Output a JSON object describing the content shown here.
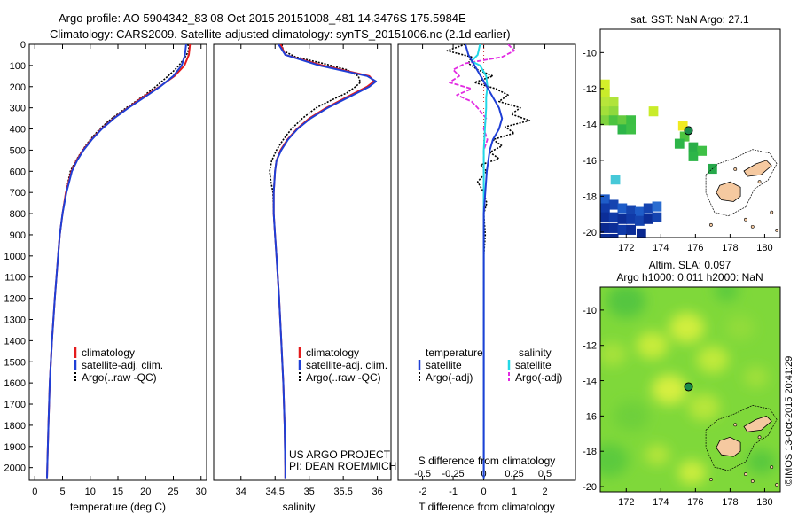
{
  "header": {
    "line1": "Argo profile: AO 5904342_83 08-Oct-2015 20151008_481 14.3476S 175.5984E",
    "line2": "Climatology: CARS2009. Satellite-adjusted climatology: synTS_20151006.nc (2.1d earlier)"
  },
  "credits": {
    "project": "US ARGO PROJECT",
    "pi": "PI: DEAN ROEMMICH",
    "imos_stamp": "©IMOS 13-Oct-2015 20:41:29"
  },
  "colors": {
    "climatology": "#e41a1c",
    "satellite_adj": "#1f3fd6",
    "argo": "#000000",
    "s_satellite": "#22d8e6",
    "s_argo": "#e22be2",
    "land": "#f5c9a0",
    "float_marker": "#1a8a4a"
  },
  "chart_data": [
    {
      "type": "line",
      "panel": "temperature",
      "xlabel": "temperature (deg C)",
      "xlim": [
        -1,
        31
      ],
      "xticks": [
        0,
        5,
        10,
        15,
        20,
        25,
        30
      ],
      "ylim": [
        0,
        2060
      ],
      "yticks": [
        0,
        100,
        200,
        300,
        400,
        500,
        600,
        700,
        800,
        900,
        1000,
        1100,
        1200,
        1300,
        1400,
        1500,
        1600,
        1700,
        1800,
        1900,
        2000
      ],
      "legend": [
        "climatology",
        "satellite-adj. clim.",
        "Argo(..raw -QC)"
      ],
      "legend_position": "bottom-center",
      "series": [
        {
          "name": "climatology",
          "depth": [
            0,
            50,
            100,
            150,
            200,
            250,
            300,
            350,
            400,
            450,
            500,
            550,
            600,
            700,
            800,
            900,
            1000,
            1200,
            1400,
            1600,
            1800,
            2000,
            2050
          ],
          "values": [
            28.0,
            27.8,
            27.0,
            25.2,
            22.5,
            19.5,
            16.8,
            14.2,
            12.0,
            10.2,
            8.7,
            7.5,
            6.6,
            5.6,
            5.0,
            4.5,
            4.2,
            3.6,
            3.1,
            2.7,
            2.45,
            2.25,
            2.2
          ]
        },
        {
          "name": "satellite-adj. clim.",
          "depth": [
            0,
            50,
            100,
            150,
            200,
            250,
            300,
            350,
            400,
            450,
            500,
            550,
            600,
            700,
            800,
            900,
            1000,
            1200,
            1400,
            1600,
            1800,
            2000,
            2050
          ],
          "values": [
            27.3,
            27.1,
            26.5,
            25.0,
            22.6,
            19.8,
            16.9,
            14.3,
            12.1,
            10.3,
            8.8,
            7.6,
            6.7,
            5.7,
            5.0,
            4.5,
            4.2,
            3.6,
            3.1,
            2.7,
            2.45,
            2.25,
            2.2
          ]
        },
        {
          "name": "Argo(..raw -QC)",
          "depth": [
            0,
            20,
            50,
            80,
            100,
            130,
            160,
            200,
            250,
            300,
            350,
            400,
            450,
            500,
            550,
            600,
            650,
            700,
            800,
            900,
            1000,
            1200,
            1400,
            1600,
            1800,
            2000
          ],
          "values": [
            27.6,
            27.8,
            27.4,
            26.6,
            26.0,
            24.9,
            23.6,
            21.8,
            19.3,
            16.5,
            13.9,
            11.7,
            10.0,
            8.6,
            7.4,
            6.4,
            6.0,
            5.6,
            5.0,
            4.5,
            4.2,
            3.6,
            3.1,
            2.7,
            2.45,
            2.25
          ]
        }
      ]
    },
    {
      "type": "line",
      "panel": "salinity",
      "xlabel": "salinity",
      "xlim": [
        33.6,
        36.2
      ],
      "xticks": [
        34,
        34.5,
        35,
        35.5,
        36
      ],
      "ylim": [
        0,
        2060
      ],
      "legend": [
        "climatology",
        "satellite-adj. clim.",
        "Argo(..raw -QC)"
      ],
      "legend_position": "bottom-center",
      "series": [
        {
          "name": "climatology",
          "depth": [
            0,
            50,
            100,
            150,
            175,
            200,
            250,
            300,
            350,
            400,
            450,
            500,
            550,
            600,
            700,
            800,
            900,
            1000,
            1200,
            1400,
            1600,
            1800,
            2000,
            2050
          ],
          "values": [
            34.58,
            34.65,
            35.2,
            35.88,
            35.95,
            35.85,
            35.55,
            35.25,
            35.0,
            34.82,
            34.68,
            34.58,
            34.52,
            34.5,
            34.48,
            34.48,
            34.5,
            34.52,
            34.56,
            34.59,
            34.62,
            34.64,
            34.65,
            34.65
          ]
        },
        {
          "name": "satellite-adj. clim.",
          "depth": [
            0,
            50,
            100,
            150,
            175,
            200,
            250,
            300,
            350,
            400,
            450,
            500,
            550,
            600,
            700,
            800,
            900,
            1000,
            1200,
            1400,
            1600,
            1800,
            2000,
            2050
          ],
          "values": [
            34.55,
            34.65,
            35.15,
            35.85,
            35.98,
            35.88,
            35.58,
            35.27,
            35.02,
            34.83,
            34.69,
            34.59,
            34.52,
            34.5,
            34.48,
            34.48,
            34.5,
            34.52,
            34.56,
            34.59,
            34.62,
            34.64,
            34.65,
            34.65
          ]
        },
        {
          "name": "Argo(..raw -QC)",
          "depth": [
            0,
            30,
            60,
            90,
            120,
            150,
            180,
            200,
            230,
            260,
            300,
            350,
            400,
            450,
            500,
            550,
            600,
            650,
            700,
            800,
            900,
            1000,
            1200,
            1400,
            1600,
            1800,
            2000
          ],
          "values": [
            34.6,
            34.62,
            34.8,
            35.2,
            35.55,
            35.72,
            35.75,
            35.68,
            35.55,
            35.35,
            35.1,
            34.9,
            34.74,
            34.62,
            34.52,
            34.45,
            34.42,
            34.44,
            34.47,
            34.48,
            34.5,
            34.52,
            34.56,
            34.59,
            34.62,
            34.64,
            34.65
          ]
        }
      ]
    },
    {
      "type": "line",
      "panel": "difference",
      "xlabel_top": "S difference from climatology",
      "xlabel": "T difference from climatology",
      "s_ticks": [
        "-0.5",
        "-0.25",
        "0",
        "0.25",
        "0.5"
      ],
      "xlim": [
        -2.8,
        3.0
      ],
      "xticks": [
        -2,
        -1,
        0,
        1,
        2
      ],
      "ylim": [
        0,
        2060
      ],
      "legend_left_title": "temperature",
      "legend_right_title": "salinity",
      "legend_left": [
        "satellite",
        "Argo(-adj)"
      ],
      "legend_right": [
        "satellite",
        "Argo(-adj)"
      ],
      "legend_position": "bottom-center",
      "series": [
        {
          "name": "T satellite",
          "depth": [
            0,
            50,
            100,
            150,
            200,
            250,
            300,
            350,
            400,
            450,
            500,
            600,
            700,
            800,
            1000,
            1500,
            2050
          ],
          "values": [
            -0.6,
            -0.5,
            -0.3,
            -0.1,
            0.1,
            0.3,
            0.5,
            0.6,
            0.5,
            0.3,
            0.2,
            0.1,
            0.05,
            0.0,
            0.0,
            0.0,
            0.0
          ]
        },
        {
          "name": "T Argo(-adj)",
          "depth": [
            0,
            30,
            60,
            90,
            120,
            150,
            180,
            210,
            240,
            270,
            300,
            330,
            360,
            390,
            420,
            450,
            480,
            510,
            540,
            570,
            600,
            650,
            700,
            750,
            800,
            900,
            1000,
            1200,
            1500,
            2000
          ],
          "values": [
            -0.6,
            -1.2,
            -0.4,
            -0.5,
            -0.2,
            0.3,
            -0.3,
            0.4,
            0.8,
            0.5,
            1.2,
            0.9,
            1.5,
            0.7,
            1.0,
            0.3,
            0.6,
            0.2,
            0.5,
            -0.1,
            0.1,
            -0.2,
            0.0,
            0.1,
            0.0,
            0.05,
            0.0,
            0.0,
            0.0,
            0.0
          ]
        },
        {
          "name": "S satellite",
          "depth": [
            0,
            50,
            80,
            100,
            150,
            200,
            250,
            300,
            400,
            500,
            600,
            700,
            1000,
            1500,
            2050
          ],
          "values": [
            -0.03,
            -0.05,
            -0.1,
            -0.03,
            0.02,
            0.03,
            0.02,
            0.02,
            0.01,
            0.0,
            0.0,
            0.0,
            0.0,
            0.0,
            0.0
          ]
        },
        {
          "name": "S Argo(-adj)",
          "depth": [
            0,
            30,
            60,
            90,
            120,
            150,
            180,
            210,
            240,
            270,
            300,
            350,
            400,
            450,
            500,
            600,
            700,
            800,
            1000,
            1500,
            2000
          ],
          "values": [
            0.2,
            0.25,
            0.15,
            -0.15,
            -0.25,
            -0.2,
            -0.28,
            -0.1,
            -0.22,
            -0.1,
            -0.05,
            0.02,
            0.0,
            0.03,
            0.0,
            0.0,
            0.0,
            0.0,
            0.0,
            0.0,
            0.0
          ]
        }
      ]
    },
    {
      "type": "heatmap",
      "panel": "sst_map",
      "title": "sat. SST: NaN Argo: 27.1",
      "xlim": [
        170.5,
        180.9
      ],
      "ylim": [
        -20.3,
        -8.7
      ],
      "xticks": [
        172,
        174,
        176,
        178,
        180
      ],
      "yticks": [
        -10,
        -12,
        -14,
        -16,
        -18,
        -20
      ],
      "float_position": {
        "lon": 175.5984,
        "lat": -14.3476
      }
    },
    {
      "type": "heatmap",
      "panel": "sla_map",
      "title_line1": "Altim. SLA: 0.097",
      "title_line2": "Argo h1000: 0.011 h2000: NaN",
      "xlim": [
        170.5,
        180.9
      ],
      "ylim": [
        -20.3,
        -8.7
      ],
      "xticks": [
        172,
        174,
        176,
        178,
        180
      ],
      "yticks": [
        -10,
        -12,
        -14,
        -16,
        -18,
        -20
      ],
      "float_position": {
        "lon": 175.5984,
        "lat": -14.3476
      }
    }
  ]
}
